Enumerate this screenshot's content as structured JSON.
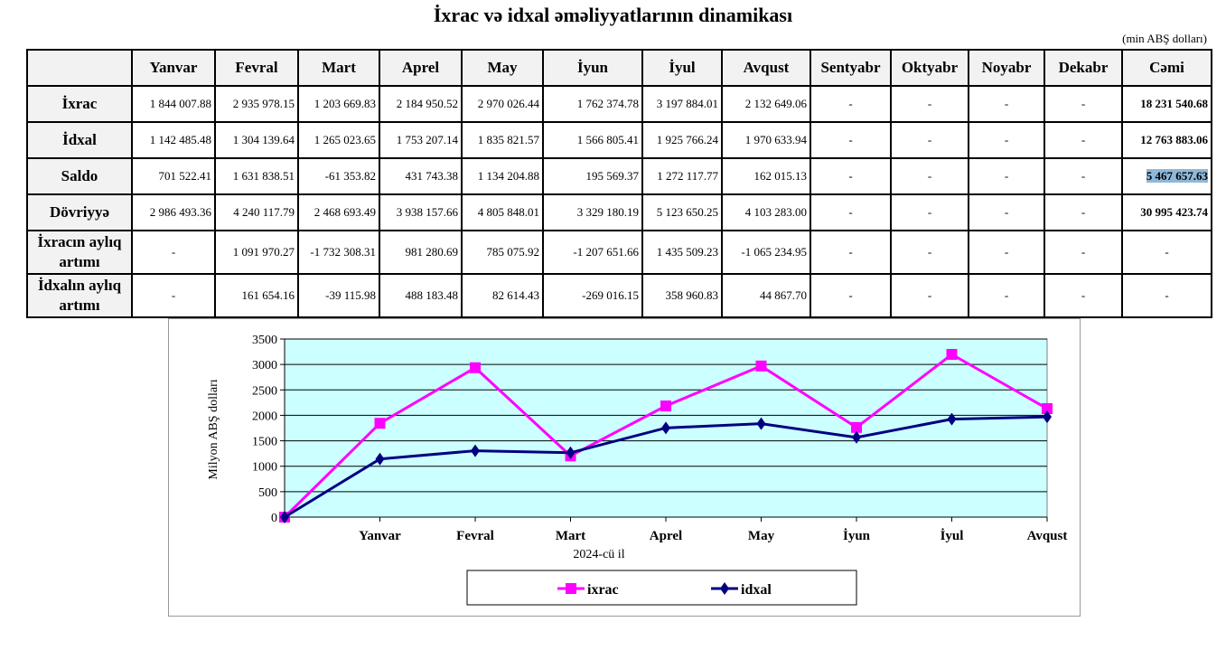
{
  "title": "İxrac və idxal əməliyyatlarının dinamikası",
  "unit": "(min ABŞ dolları)",
  "table": {
    "columns": [
      "",
      "Yanvar",
      "Fevral",
      "Mart",
      "Aprel",
      "May",
      "İyun",
      "İyul",
      "Avqust",
      "Sentyabr",
      "Oktyabr",
      "Noyabr",
      "Dekabr",
      "Cəmi"
    ],
    "rows": [
      {
        "label": "İxrac",
        "cells": [
          "1 844 007.88",
          "2 935 978.15",
          "1 203 669.83",
          "2 184 950.52",
          "2 970 026.44",
          "1 762 374.78",
          "3 197 884.01",
          "2 132 649.06",
          "-",
          "-",
          "-",
          "-",
          "18 231 540.68"
        ]
      },
      {
        "label": "İdxal",
        "cells": [
          "1 142 485.48",
          "1 304 139.64",
          "1 265 023.65",
          "1 753 207.14",
          "1 835 821.57",
          "1 566 805.41",
          "1 925 766.24",
          "1 970 633.94",
          "-",
          "-",
          "-",
          "-",
          "12 763 883.06"
        ]
      },
      {
        "label": "Saldo",
        "cells": [
          "701 522.41",
          "1 631 838.51",
          "-61 353.82",
          "431 743.38",
          "1 134 204.88",
          "195 569.37",
          "1 272 117.77",
          "162 015.13",
          "-",
          "-",
          "-",
          "-",
          "5 467 657.63"
        ]
      },
      {
        "label": "Dövriyyə",
        "cells": [
          "2 986 493.36",
          "4 240 117.79",
          "2 468 693.49",
          "3 938 157.66",
          "4 805 848.01",
          "3 329 180.19",
          "5 123 650.25",
          "4 103 283.00",
          "-",
          "-",
          "-",
          "-",
          "30 995 423.74"
        ]
      },
      {
        "label": "İxracın aylıq artımı",
        "cells": [
          "-",
          "1 091 970.27",
          "-1 732 308.31",
          "981 280.69",
          "785 075.92",
          "-1 207 651.66",
          "1 435 509.23",
          "-1 065 234.95",
          "-",
          "-",
          "-",
          "-",
          "-"
        ]
      },
      {
        "label": "İdxalın aylıq artımı",
        "cells": [
          "-",
          "161 654.16",
          "-39 115.98",
          "488 183.48",
          "82 614.43",
          "-269 016.15",
          "358 960.83",
          "44 867.70",
          "-",
          "-",
          "-",
          "-",
          "-"
        ]
      }
    ]
  },
  "chart_data": {
    "type": "line",
    "categories": [
      "",
      "Yanvar",
      "Fevral",
      "Mart",
      "Aprel",
      "May",
      "İyun",
      "İyul",
      "Avqust"
    ],
    "series": [
      {
        "name": "ixrac",
        "color": "#ff00ff",
        "marker": "square",
        "values": [
          0,
          1844.0,
          2936.0,
          1203.7,
          2185.0,
          2970.0,
          1762.4,
          3197.9,
          2132.6
        ]
      },
      {
        "name": "idxal",
        "color": "#000080",
        "marker": "diamond",
        "values": [
          0,
          1142.5,
          1304.1,
          1265.0,
          1753.2,
          1835.8,
          1566.8,
          1925.8,
          1970.6
        ]
      }
    ],
    "xlabel": "2024-cü il",
    "ylabel": "Milyon ABŞ dolları",
    "ylim": [
      0,
      3500
    ],
    "yticks": [
      "0",
      "500",
      "1000",
      "1500",
      "2000",
      "2500",
      "3000",
      "3500"
    ],
    "grid": true,
    "plot_background": "#ccffff",
    "legend": "bottom"
  }
}
